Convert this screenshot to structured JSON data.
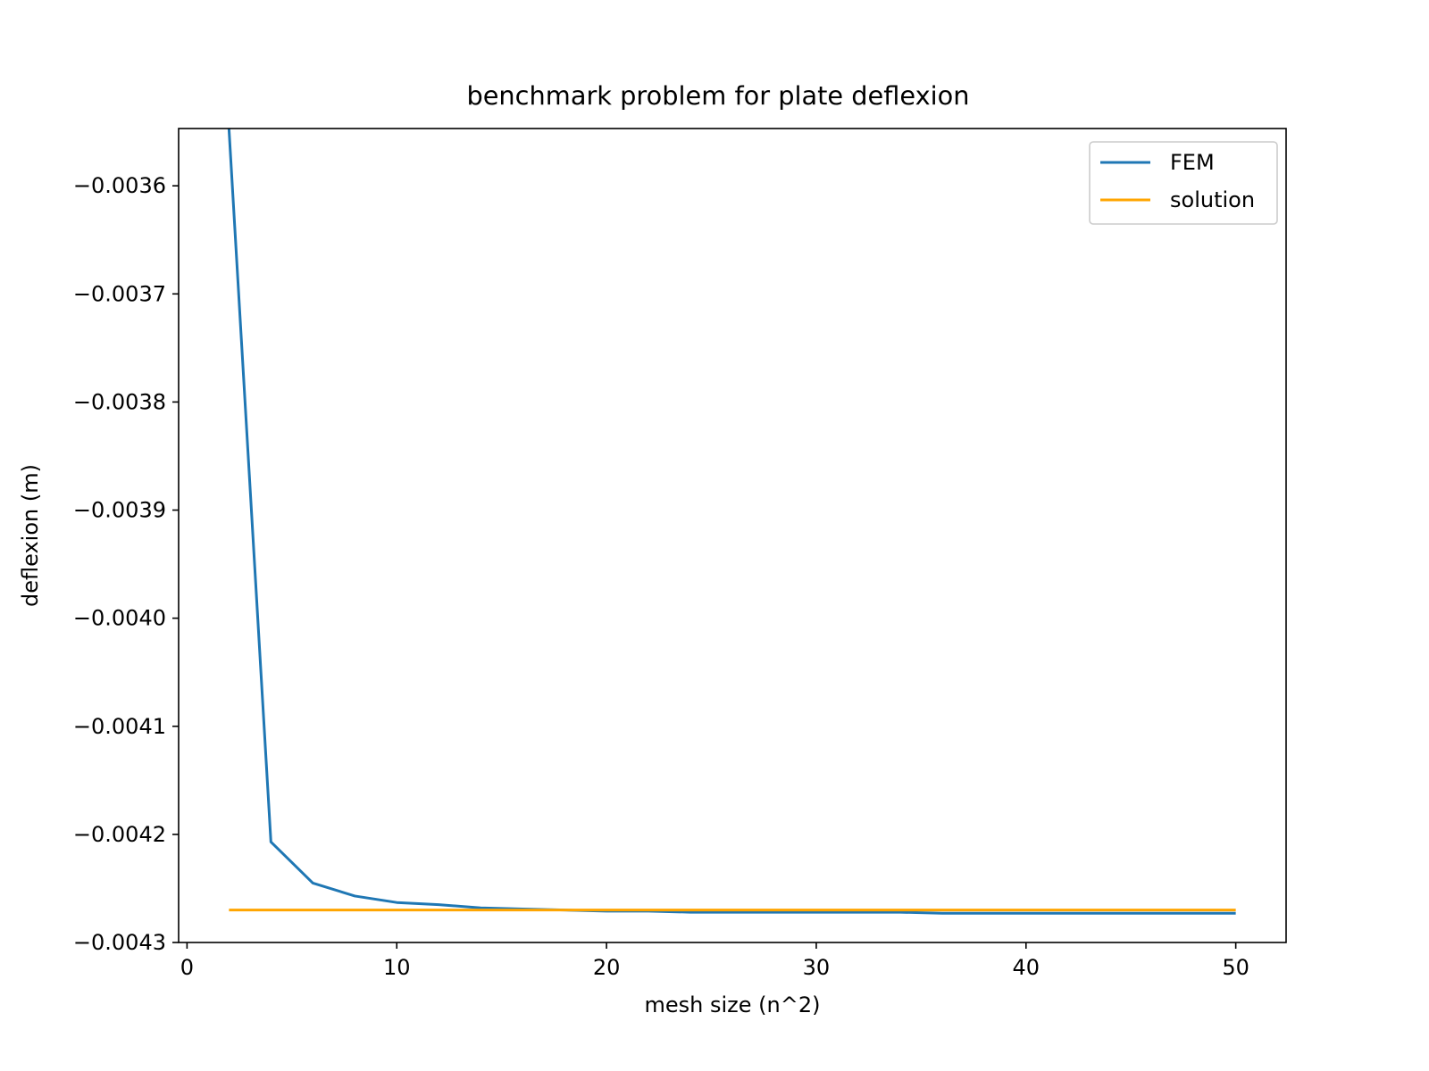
{
  "chart_data": {
    "type": "line",
    "title": "benchmark problem for plate deflexion",
    "xlabel": "mesh size (n^2)",
    "ylabel": "deflexion (m)",
    "xlim": [
      -0.4,
      52.4
    ],
    "ylim": [
      -0.0043,
      -0.003547
    ],
    "xticks": [
      0,
      10,
      20,
      30,
      40,
      50
    ],
    "xtick_labels": [
      "0",
      "10",
      "20",
      "30",
      "40",
      "50"
    ],
    "yticks": [
      -0.0036,
      -0.0037,
      -0.0038,
      -0.0039,
      -0.004,
      -0.0041,
      -0.0042,
      -0.0043
    ],
    "ytick_labels": [
      "−0.0036",
      "−0.0037",
      "−0.0038",
      "−0.0039",
      "−0.0040",
      "−0.0041",
      "−0.0042",
      "−0.0043"
    ],
    "grid": false,
    "legend_position": "top-right",
    "series": [
      {
        "name": "FEM",
        "color": "#1f77b4",
        "x": [
          2,
          4,
          6,
          8,
          10,
          12,
          14,
          16,
          18,
          20,
          22,
          24,
          26,
          28,
          30,
          32,
          34,
          36,
          38,
          40,
          42,
          44,
          46,
          48,
          50
        ],
        "y": [
          -0.003547,
          -0.004207,
          -0.004245,
          -0.004257,
          -0.004263,
          -0.004265,
          -0.004268,
          -0.004269,
          -0.00427,
          -0.004271,
          -0.004271,
          -0.004272,
          -0.004272,
          -0.004272,
          -0.004272,
          -0.004272,
          -0.004272,
          -0.004273,
          -0.004273,
          -0.004273,
          -0.004273,
          -0.004273,
          -0.004273,
          -0.004273,
          -0.004273
        ]
      },
      {
        "name": "solution",
        "color": "#ffa500",
        "x": [
          2,
          50
        ],
        "y": [
          -0.00427,
          -0.00427
        ]
      }
    ]
  }
}
